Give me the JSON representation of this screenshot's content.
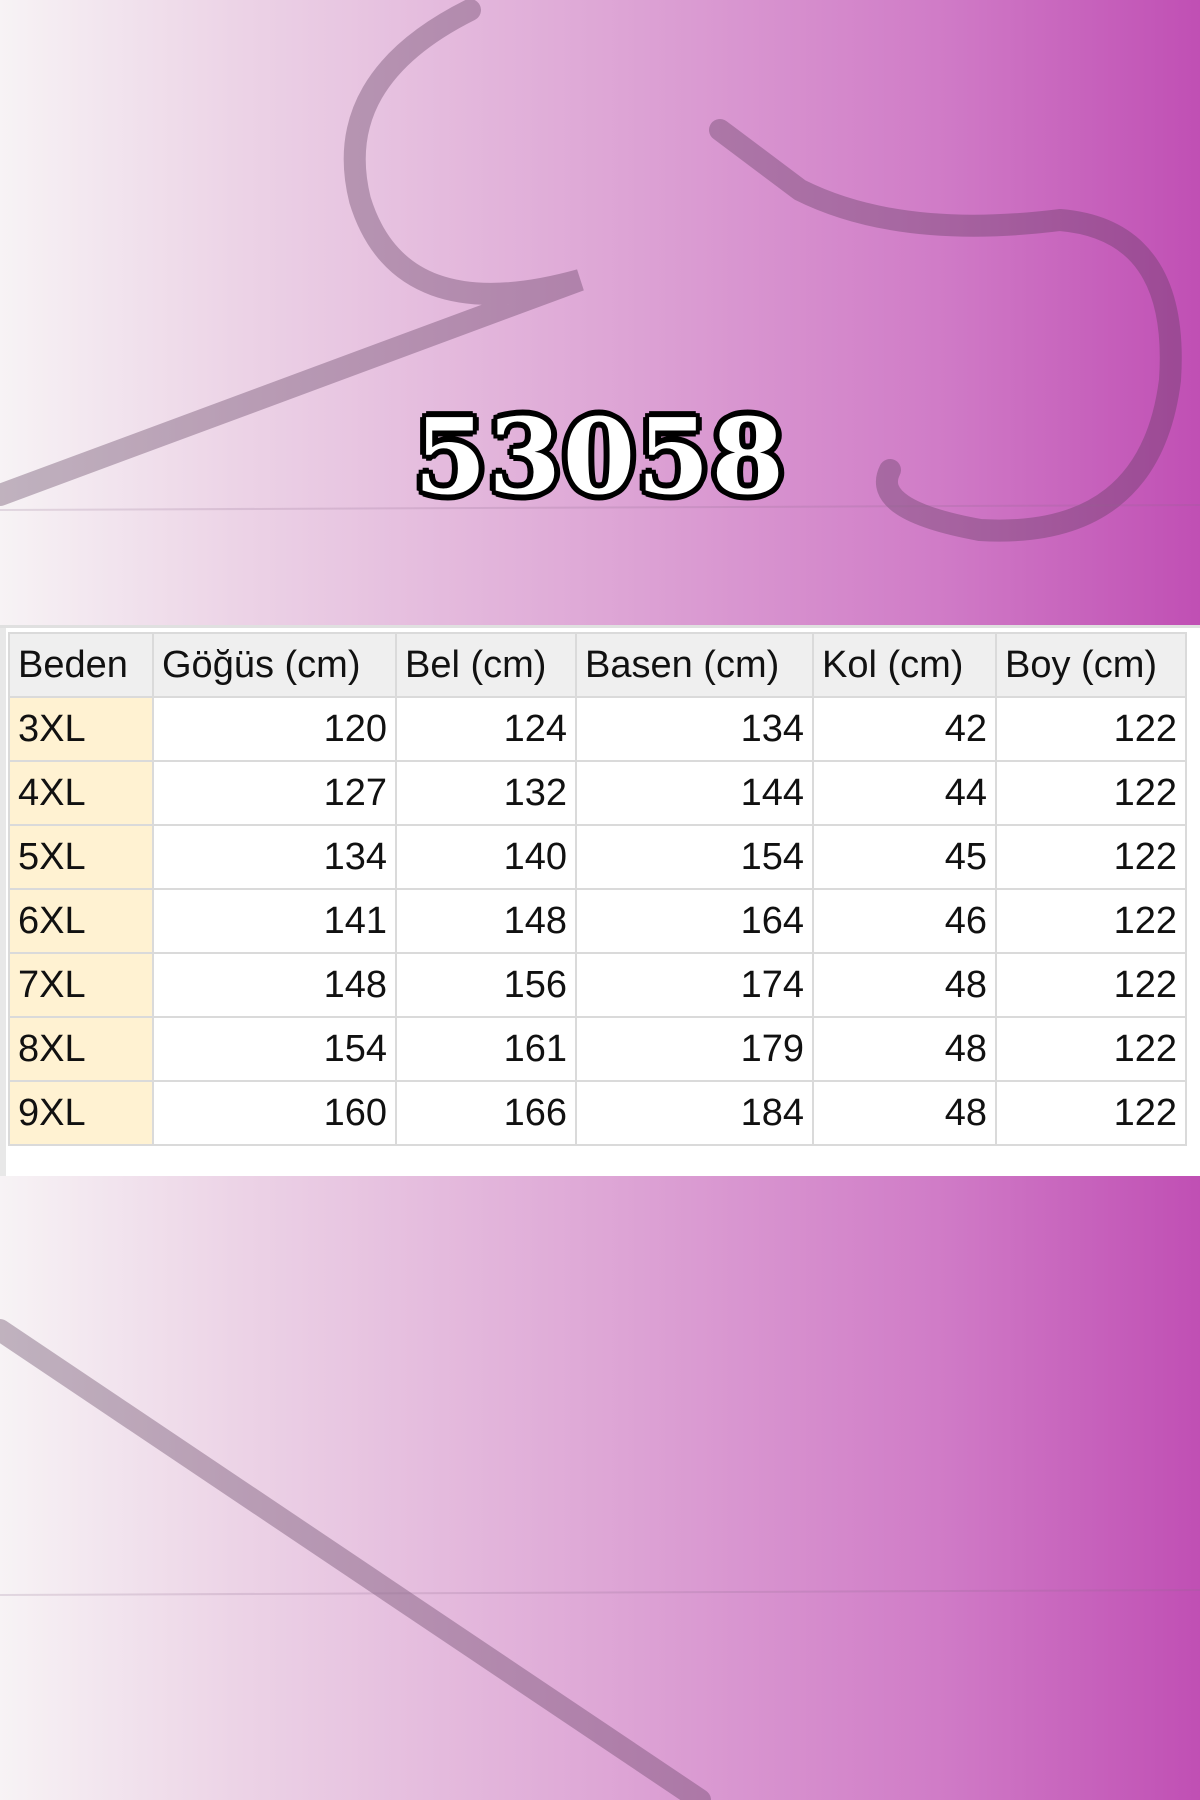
{
  "title": "53058",
  "colors": {
    "accent": "#c04fb4",
    "size_cell": "#fff2d2",
    "header_bg": "#efefef"
  },
  "table": {
    "headers": [
      "Beden",
      "Göğüs (cm)",
      "Bel (cm)",
      "Basen (cm)",
      "Kol (cm)",
      "Boy (cm)"
    ],
    "rows": [
      [
        "3XL",
        "120",
        "124",
        "134",
        "42",
        "122"
      ],
      [
        "4XL",
        "127",
        "132",
        "144",
        "44",
        "122"
      ],
      [
        "5XL",
        "134",
        "140",
        "154",
        "45",
        "122"
      ],
      [
        "6XL",
        "141",
        "148",
        "164",
        "46",
        "122"
      ],
      [
        "7XL",
        "148",
        "156",
        "174",
        "48",
        "122"
      ],
      [
        "8XL",
        "154",
        "161",
        "179",
        "48",
        "122"
      ],
      [
        "9XL",
        "160",
        "166",
        "184",
        "48",
        "122"
      ]
    ]
  }
}
